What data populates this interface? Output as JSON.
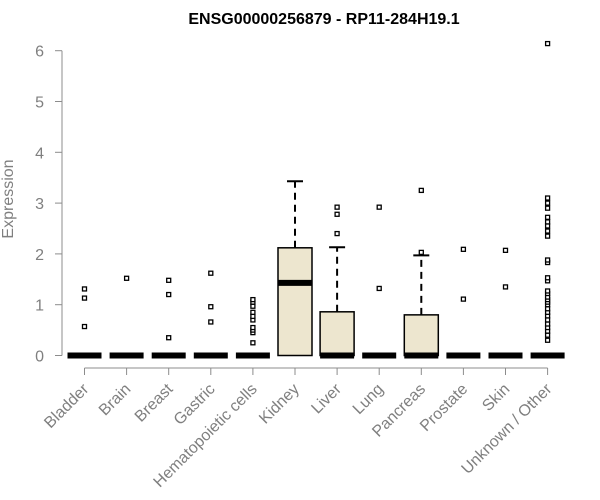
{
  "chart_data": {
    "type": "box",
    "title": "ENSG00000256879 - RP11-284H19.1",
    "xlabel": "",
    "ylabel": "Expression",
    "ylim": [
      0,
      6.2
    ],
    "yticks": [
      0,
      1,
      2,
      3,
      4,
      5,
      6
    ],
    "grid": false,
    "legend": "none",
    "box_fill": "#ede6cf",
    "categories": [
      "Bladder",
      "Brain",
      "Breast",
      "Gastric",
      "Hematopoietic cells",
      "Kidney",
      "Liver",
      "Lung",
      "Pancreas",
      "Prostate",
      "Skin",
      "Unknown / Other"
    ],
    "boxes": [
      {
        "category": "Bladder",
        "q1": 0,
        "median": 0,
        "q3": 0,
        "whisker_low": 0,
        "whisker_high": 0,
        "outliers": [
          0.57,
          1.13,
          1.31
        ]
      },
      {
        "category": "Brain",
        "q1": 0,
        "median": 0,
        "q3": 0,
        "whisker_low": 0,
        "whisker_high": 0,
        "outliers": [
          1.52
        ]
      },
      {
        "category": "Breast",
        "q1": 0,
        "median": 0,
        "q3": 0,
        "whisker_low": 0,
        "whisker_high": 0,
        "outliers": [
          0.35,
          1.2,
          1.48
        ]
      },
      {
        "category": "Gastric",
        "q1": 0,
        "median": 0,
        "q3": 0,
        "whisker_low": 0,
        "whisker_high": 0,
        "outliers": [
          0.66,
          0.96,
          1.62
        ]
      },
      {
        "category": "Hematopoietic cells",
        "q1": 0,
        "median": 0,
        "q3": 0,
        "whisker_low": 0,
        "whisker_high": 0,
        "outliers": [
          0.25,
          0.45,
          0.5,
          0.55,
          0.7,
          0.77,
          0.85,
          0.97,
          1.05,
          1.1
        ]
      },
      {
        "category": "Kidney",
        "q1": 0,
        "median": 1.43,
        "q3": 2.12,
        "whisker_low": 0,
        "whisker_high": 3.43,
        "outliers": []
      },
      {
        "category": "Liver",
        "q1": 0,
        "median": 0,
        "q3": 0.86,
        "whisker_low": 0,
        "whisker_high": 2.13,
        "outliers": [
          2.4,
          2.78,
          2.92
        ]
      },
      {
        "category": "Lung",
        "q1": 0,
        "median": 0,
        "q3": 0,
        "whisker_low": 0,
        "whisker_high": 0,
        "outliers": [
          1.32,
          2.92
        ]
      },
      {
        "category": "Pancreas",
        "q1": 0,
        "median": 0,
        "q3": 0.8,
        "whisker_low": 0,
        "whisker_high": 1.97,
        "outliers": [
          2.03,
          3.25
        ]
      },
      {
        "category": "Prostate",
        "q1": 0,
        "median": 0,
        "q3": 0,
        "whisker_low": 0,
        "whisker_high": 0,
        "outliers": [
          1.11,
          2.09
        ]
      },
      {
        "category": "Skin",
        "q1": 0,
        "median": 0,
        "q3": 0,
        "whisker_low": 0,
        "whisker_high": 0,
        "outliers": [
          1.35,
          2.07
        ]
      },
      {
        "category": "Unknown / Other",
        "q1": 0,
        "median": 0,
        "q3": 0,
        "whisker_low": 0,
        "whisker_high": 0,
        "outliers": [
          0.3,
          0.4,
          0.48,
          0.55,
          0.62,
          0.7,
          0.78,
          0.85,
          0.92,
          1.0,
          1.05,
          1.1,
          1.15,
          1.22,
          1.27,
          1.47,
          1.53,
          1.83,
          1.88,
          2.35,
          2.45,
          2.55,
          2.63,
          2.72,
          2.9,
          3.0,
          3.1,
          6.14
        ]
      }
    ]
  }
}
